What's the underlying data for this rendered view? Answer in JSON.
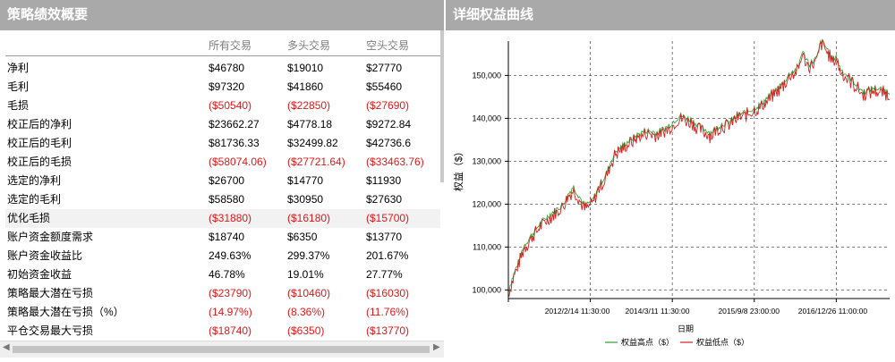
{
  "left_panel": {
    "title": "策略绩效概要",
    "columns": [
      "所有交易",
      "多头交易",
      "空头交易"
    ],
    "rows": [
      {
        "label": "净利",
        "values": [
          "$46780",
          "$19010",
          "$27770"
        ]
      },
      {
        "label": "毛利",
        "values": [
          "$97320",
          "$41860",
          "$55460"
        ]
      },
      {
        "label": "毛损",
        "values": [
          "($50540)",
          "($22850)",
          "($27690)"
        ]
      },
      {
        "label": "校正后的净利",
        "values": [
          "$23662.27",
          "$4778.18",
          "$9272.84"
        ]
      },
      {
        "label": "校正后的毛利",
        "values": [
          "$81736.33",
          "$32499.82",
          "$42736.6"
        ]
      },
      {
        "label": "校正后的毛损",
        "values": [
          "($58074.06)",
          "($27721.64)",
          "($33463.76)"
        ]
      },
      {
        "label": "选定的净利",
        "values": [
          "$26700",
          "$14770",
          "$11930"
        ]
      },
      {
        "label": "选定的毛利",
        "values": [
          "$58580",
          "$30950",
          "$27630"
        ]
      },
      {
        "label": "优化毛损",
        "values": [
          "($31880)",
          "($16180)",
          "($15700)"
        ]
      },
      {
        "label": "账户资金额度需求",
        "values": [
          "$18740",
          "$6350",
          "$13770"
        ]
      },
      {
        "label": "账户资金收益比",
        "values": [
          "249.63%",
          "299.37%",
          "201.67%"
        ]
      },
      {
        "label": "初始资金收益",
        "values": [
          "46.78%",
          "19.01%",
          "27.77%"
        ]
      },
      {
        "label": "策略最大潜在亏损",
        "values": [
          "($23790)",
          "($10460)",
          "($16030)"
        ]
      },
      {
        "label": "策略最大潜在亏损（%）",
        "values": [
          "(14.97%)",
          "(8.36%)",
          "(11.76%)"
        ]
      },
      {
        "label": "平仓交易最大亏损",
        "values": [
          "($18740)",
          "($6350)",
          "($13770)"
        ]
      }
    ],
    "highlighted_row": 8,
    "negative_color": "#e01818"
  },
  "right_panel": {
    "title": "详细权益曲线"
  },
  "chart_data": {
    "type": "line",
    "ylabel": "权益（$）",
    "xlabel": "日期",
    "ylim": [
      98000,
      158000
    ],
    "y_ticks": [
      "100,000",
      "110,000",
      "120,000",
      "130,000",
      "140,000",
      "150,000"
    ],
    "x_ticks": [
      "2012/2/14 11:30:00",
      "2014/3/11 11:30:00",
      "2015/9/8 23:00:00",
      "2016/12/26 11:00:00"
    ],
    "grid": true,
    "legend_position": "bottom",
    "series": [
      {
        "name": "权益高点（$）",
        "color": "#2ca02c",
        "x": [
          0.0,
          0.01,
          0.025,
          0.04,
          0.06,
          0.085,
          0.11,
          0.14,
          0.17,
          0.2,
          0.22,
          0.24,
          0.255,
          0.27,
          0.28,
          0.3,
          0.33,
          0.36,
          0.39,
          0.42,
          0.45,
          0.48,
          0.5,
          0.53,
          0.56,
          0.58,
          0.6,
          0.63,
          0.66,
          0.69,
          0.72,
          0.74,
          0.76,
          0.77,
          0.79,
          0.81,
          0.82,
          0.84,
          0.85,
          0.86,
          0.87,
          0.88,
          0.9,
          0.93,
          0.96,
          1.0
        ],
        "values": [
          99500,
          102500,
          106000,
          110000,
          112500,
          115500,
          117500,
          119500,
          124000,
          119500,
          120500,
          124500,
          126500,
          130000,
          132000,
          133500,
          135500,
          137000,
          136500,
          138000,
          140500,
          139500,
          138000,
          136500,
          138500,
          139000,
          140500,
          141500,
          143000,
          145500,
          148000,
          150500,
          151500,
          155500,
          152500,
          154000,
          158000,
          155500,
          153500,
          154500,
          151500,
          150500,
          149000,
          146000,
          147000,
          146000
        ],
        "spread": 1400
      },
      {
        "name": "权益低点（$）",
        "color": "#d62020"
      }
    ]
  }
}
